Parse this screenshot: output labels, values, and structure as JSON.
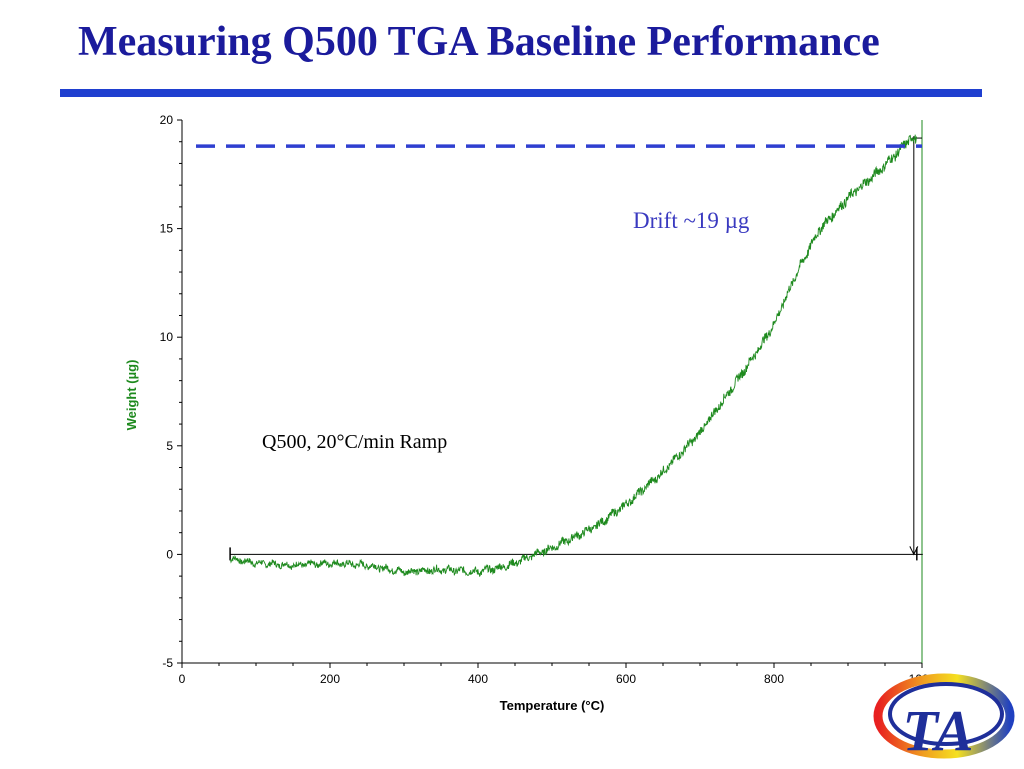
{
  "slide": {
    "title": "Measuring Q500 TGA Baseline Performance",
    "title_color": "#1b1b9c",
    "rule_color": "#1f3fd0"
  },
  "chart_data": {
    "type": "line",
    "xlabel": "Temperature (°C)",
    "ylabel": "Weight (µg)",
    "xlim": [
      0,
      1000
    ],
    "ylim": [
      -5,
      20
    ],
    "x_ticks": [
      0,
      200,
      400,
      600,
      800,
      1000
    ],
    "y_ticks": [
      -5,
      0,
      5,
      10,
      15,
      20
    ],
    "grid": false,
    "series": [
      {
        "color": "#1e8a1e",
        "x": [
          65,
          100,
          150,
          200,
          250,
          300,
          350,
          400,
          430,
          450,
          470,
          500,
          530,
          560,
          600,
          650,
          700,
          750,
          780,
          800,
          830,
          860,
          900,
          940,
          970,
          985,
          993
        ],
        "y": [
          -0.2,
          -0.4,
          -0.5,
          -0.4,
          -0.5,
          -0.8,
          -0.7,
          -0.8,
          -0.6,
          -0.4,
          -0.1,
          0.3,
          0.8,
          1.3,
          2.3,
          3.8,
          5.6,
          8.0,
          9.5,
          10.6,
          12.9,
          14.9,
          16.4,
          17.6,
          18.6,
          19.2,
          19.0
        ]
      }
    ],
    "baseline_weight": 0,
    "baseline_x_range": [
      65,
      993
    ],
    "reference_level": 18.8,
    "reference_color": "#2f3fd0",
    "annotations": {
      "drift": "Drift ~19 µg",
      "drift_color": "#3a3ac0",
      "method": "Q500, 20°C/min Ramp"
    }
  },
  "logo": {
    "text": "TA",
    "name": "ta-instruments-logo"
  }
}
